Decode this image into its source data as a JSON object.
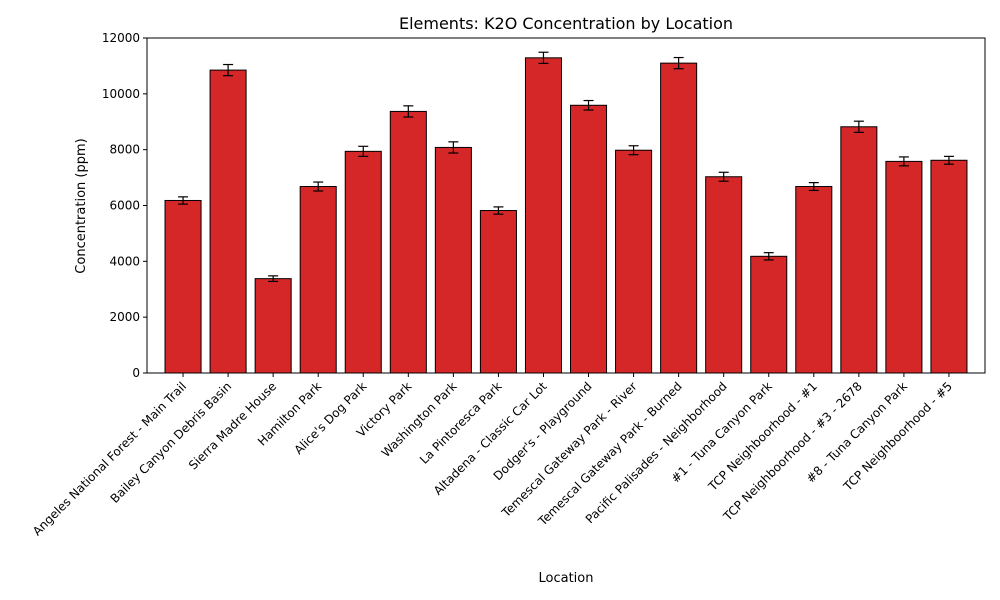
{
  "chart_data": {
    "type": "bar",
    "title": "Elements: K2O Concentration by Location",
    "xlabel": "Location",
    "ylabel": "Concentration (ppm)",
    "ylim": [
      0,
      12000
    ],
    "yticks": [
      0,
      2000,
      4000,
      6000,
      8000,
      10000,
      12000
    ],
    "grid": false,
    "bar_color": "#d62728",
    "edge_color": "#000000",
    "categories": [
      "Angeles National Forest - Main Trail",
      "Bailey Canyon Debris Basin",
      "Sierra Madre House",
      "Hamilton Park",
      "Alice's Dog Park",
      "Victory Park",
      "Washington Park",
      "La Pintoresca Park",
      "Altadena - Classic Car Lot",
      "Dodger's - Playground",
      "Temescal Gateway Park - River",
      "Temescal Gateway Park - Burned",
      "Pacific Palisades - Neighborhood",
      "#1 - Tuna Canyon Park",
      "TCP Neighboorhood - #1",
      "TCP Neighboorhood - #3 - 2678",
      "#8 - Tuna Canyon Park",
      "TCP Neighboorhood - #5"
    ],
    "values": [
      6180,
      10850,
      3380,
      6680,
      7940,
      9370,
      8080,
      5820,
      11290,
      9590,
      7980,
      11100,
      7030,
      4180,
      6680,
      8820,
      7580,
      7620
    ],
    "errors": [
      130,
      200,
      100,
      160,
      180,
      200,
      200,
      130,
      200,
      170,
      160,
      200,
      160,
      130,
      140,
      200,
      160,
      140
    ]
  }
}
